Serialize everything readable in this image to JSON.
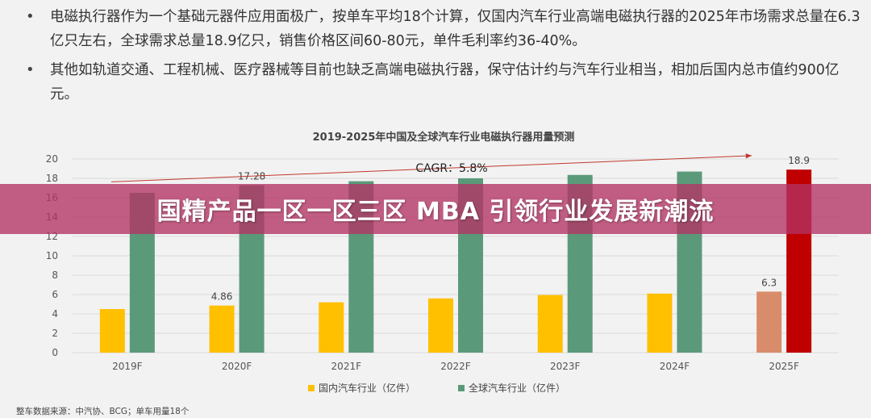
{
  "bullets": [
    "电磁执行器作为一个基础元器件应用面极广，按单车平均18个计算，仅国内汽车行业高端电磁执行器的2025年市场需求总量在6.3亿只左右，全球需求总量18.9亿只，销售价格区间60-80元，单件毛利率约36-40%。",
    "其他如轨道交通、工程机械、医疗器械等目前也缺乏高端电磁执行器，保守估计约与汽车行业相当，相加后国内总市值约900亿元。"
  ],
  "bullet_symbol": "•",
  "banner_text": "国精产品一区一区三区 MBA 引领行业发展新潮流",
  "footnote": "整车数据来源：中汽协、BCG；单车用量18个",
  "chart_data": {
    "type": "bar",
    "title": "2019-2025年中国及全球汽车行业电磁执行器用量预测",
    "categories": [
      "2019F",
      "2020F",
      "2021F",
      "2022F",
      "2023F",
      "2024F",
      "2025F"
    ],
    "series": [
      {
        "name": "国内汽车行业（亿件）",
        "values": [
          4.5,
          4.86,
          5.2,
          5.6,
          5.95,
          6.1,
          6.3
        ],
        "color": "#ffc000"
      },
      {
        "name": "全球汽车行业（亿件）",
        "values": [
          16.5,
          17.28,
          17.7,
          18.0,
          18.35,
          18.7,
          18.9
        ],
        "color": "#5a9a7a"
      }
    ],
    "highlight": {
      "category": "2025F",
      "colors": [
        "#d98c6b",
        "#c00000"
      ]
    },
    "data_labels": [
      {
        "series": 1,
        "index": 1,
        "text": "17.28"
      },
      {
        "series": 0,
        "index": 1,
        "text": "4.86"
      },
      {
        "series": 0,
        "index": 6,
        "text": "6.3"
      },
      {
        "series": 1,
        "index": 6,
        "text": "18.9"
      }
    ],
    "annotation": "CAGR：5.8%",
    "ylim": [
      0,
      20
    ],
    "yticks": [
      0,
      2,
      4,
      6,
      8,
      10,
      12,
      14,
      16,
      18,
      20
    ],
    "grid": true,
    "legend_position": "bottom"
  }
}
